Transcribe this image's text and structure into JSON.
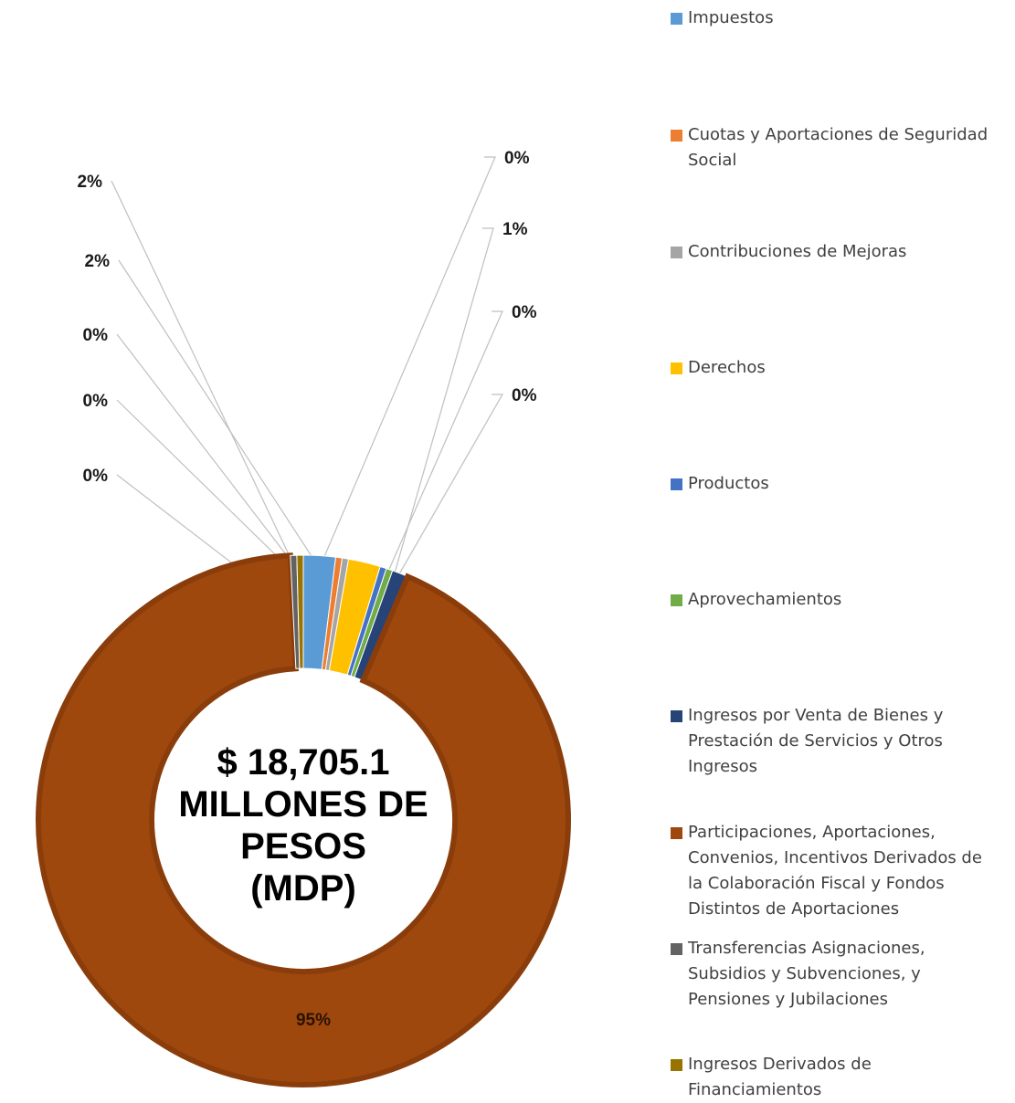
{
  "chart_data": {
    "type": "pie",
    "title": "",
    "center_label_lines": [
      "$ 18,705.1",
      "MILLONES DE",
      "PESOS",
      "(MDP)"
    ],
    "legend_position": "right",
    "series": [
      {
        "name": "Impuestos",
        "value": 2,
        "label": "2%",
        "color": "#5B9BD5"
      },
      {
        "name": "Cuotas y Aportaciones de Seguridad Social",
        "value": 0,
        "label": "0%",
        "color": "#ED7D31"
      },
      {
        "name": "Contribuciones de Mejoras",
        "value": 0,
        "label": "0%",
        "color": "#A5A5A5"
      },
      {
        "name": "Derechos",
        "value": 2,
        "label": "2%",
        "color": "#FFC000"
      },
      {
        "name": "Productos",
        "value": 0,
        "label": "0%",
        "color": "#4472C4"
      },
      {
        "name": "Aprovechamientos",
        "value": 0,
        "label": "0%",
        "color": "#70AD47"
      },
      {
        "name": "Ingresos por Venta de Bienes y Prestación de Servicios y Otros Ingresos",
        "value": 1,
        "label": "1%",
        "color": "#264478"
      },
      {
        "name": "Participaciones, Aportaciones, Convenios, Incentivos Derivados de la Colaboración Fiscal y Fondos Distintos de Aportaciones",
        "value": 95,
        "label": "95%",
        "color": "#9E480E"
      },
      {
        "name": "Transferencias Asignaciones, Subsidios y Subvenciones, y Pensiones y Jubilaciones",
        "value": 0,
        "label": "0%",
        "color": "#636363"
      },
      {
        "name": "Ingresos Derivados de Financiamientos",
        "value": 0,
        "label": "0%",
        "color": "#997300"
      }
    ]
  },
  "legend": {
    "items": [
      "Impuestos",
      "Cuotas y Aportaciones de Seguridad\nSocial",
      "Contribuciones de Mejoras",
      "Derechos",
      "Productos",
      "Aprovechamientos",
      "Ingresos por Venta de Bienes y\nPrestación de Servicios y Otros\nIngresos",
      "Participaciones, Aportaciones,\nConvenios, Incentivos Derivados de\nla Colaboración Fiscal y Fondos\nDistintos de Aportaciones",
      "Transferencias Asignaciones,\nSubsidios y Subvenciones, y\nPensiones y Jubilaciones",
      "Ingresos Derivados de\nFinanciamientos"
    ]
  }
}
